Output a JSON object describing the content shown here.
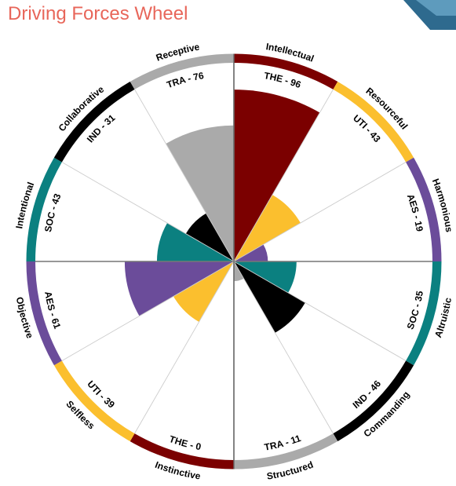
{
  "title": "Driving Forces Wheel",
  "colors": {
    "THE": "#7b0000",
    "UTI": "#fbbf2e",
    "AES": "#6b4c9a",
    "SOC": "#0b8080",
    "IND": "#000000",
    "TRA": "#aaaaaa"
  },
  "chart_data": {
    "type": "polar-bar",
    "title": "Driving Forces Wheel",
    "rlim": [
      0,
      100
    ],
    "segments": [
      {
        "label": "Intellectual",
        "code": "THE",
        "value": 96,
        "value_label": "THE - 96"
      },
      {
        "label": "Resourceful",
        "code": "UTI",
        "value": 43,
        "value_label": "UTI - 43"
      },
      {
        "label": "Harmonious",
        "code": "AES",
        "value": 19,
        "value_label": "AES - 19"
      },
      {
        "label": "Altruistic",
        "code": "SOC",
        "value": 35,
        "value_label": "SOC - 35"
      },
      {
        "label": "Commanding",
        "code": "IND",
        "value": 46,
        "value_label": "IND - 46"
      },
      {
        "label": "Structured",
        "code": "TRA",
        "value": 11,
        "value_label": "TRA - 11"
      },
      {
        "label": "Instinctive",
        "code": "THE",
        "value": 0,
        "value_label": "THE - 0"
      },
      {
        "label": "Selfless",
        "code": "UTI",
        "value": 39,
        "value_label": "UTI - 39"
      },
      {
        "label": "Objective",
        "code": "AES",
        "value": 61,
        "value_label": "AES - 61"
      },
      {
        "label": "Intentional",
        "code": "SOC",
        "value": 43,
        "value_label": "SOC - 43"
      },
      {
        "label": "Collaborative",
        "code": "IND",
        "value": 31,
        "value_label": "IND - 31"
      },
      {
        "label": "Receptive",
        "code": "TRA",
        "value": 76,
        "value_label": "TRA - 76"
      }
    ]
  }
}
